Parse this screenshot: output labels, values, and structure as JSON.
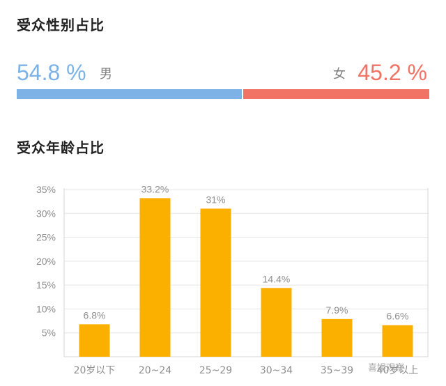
{
  "gender": {
    "title": "受众性别占比",
    "male_pct": "54.8 %",
    "male_label": "男",
    "female_pct": "45.2 %",
    "female_label": "女",
    "male_value": 54.8,
    "female_value": 45.2,
    "male_color": "#7cb2e6",
    "female_color": "#f07365"
  },
  "age": {
    "title": "受众年龄占比"
  },
  "watermark": "喜娱观察",
  "chart_data": {
    "type": "bar",
    "title": "受众年龄占比",
    "categories": [
      "20岁以下",
      "20~24",
      "25~29",
      "30~34",
      "35~39",
      "40岁以上"
    ],
    "values": [
      6.8,
      33.2,
      31,
      14.4,
      7.9,
      6.6
    ],
    "value_labels": [
      "6.8%",
      "33.2%",
      "31%",
      "14.4%",
      "7.9%",
      "6.6%"
    ],
    "y_ticks": [
      "5%",
      "10%",
      "15%",
      "20%",
      "25%",
      "30%",
      "35%"
    ],
    "ylim": [
      0,
      35
    ],
    "grid": true,
    "bar_color": "#fbb000",
    "xlabel": "",
    "ylabel": ""
  }
}
